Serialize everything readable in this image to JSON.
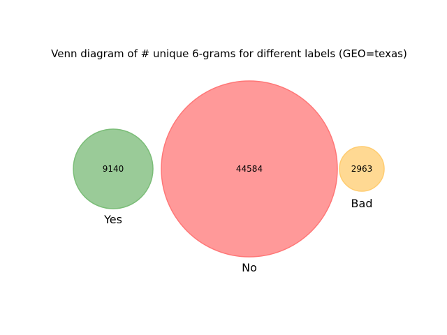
{
  "title": "Venn diagram of # unique 6-grams for different labels (GEO=texas)",
  "sets": [
    {
      "label": "Yes",
      "count": "9140",
      "fill": "#9acb98",
      "stroke": "#7bbd78"
    },
    {
      "label": "No",
      "count": "44584",
      "fill": "#ff9999",
      "stroke": "#ff7777"
    },
    {
      "label": "Bad",
      "count": "2963",
      "fill": "#ffd993",
      "stroke": "#ffcc70"
    }
  ]
}
